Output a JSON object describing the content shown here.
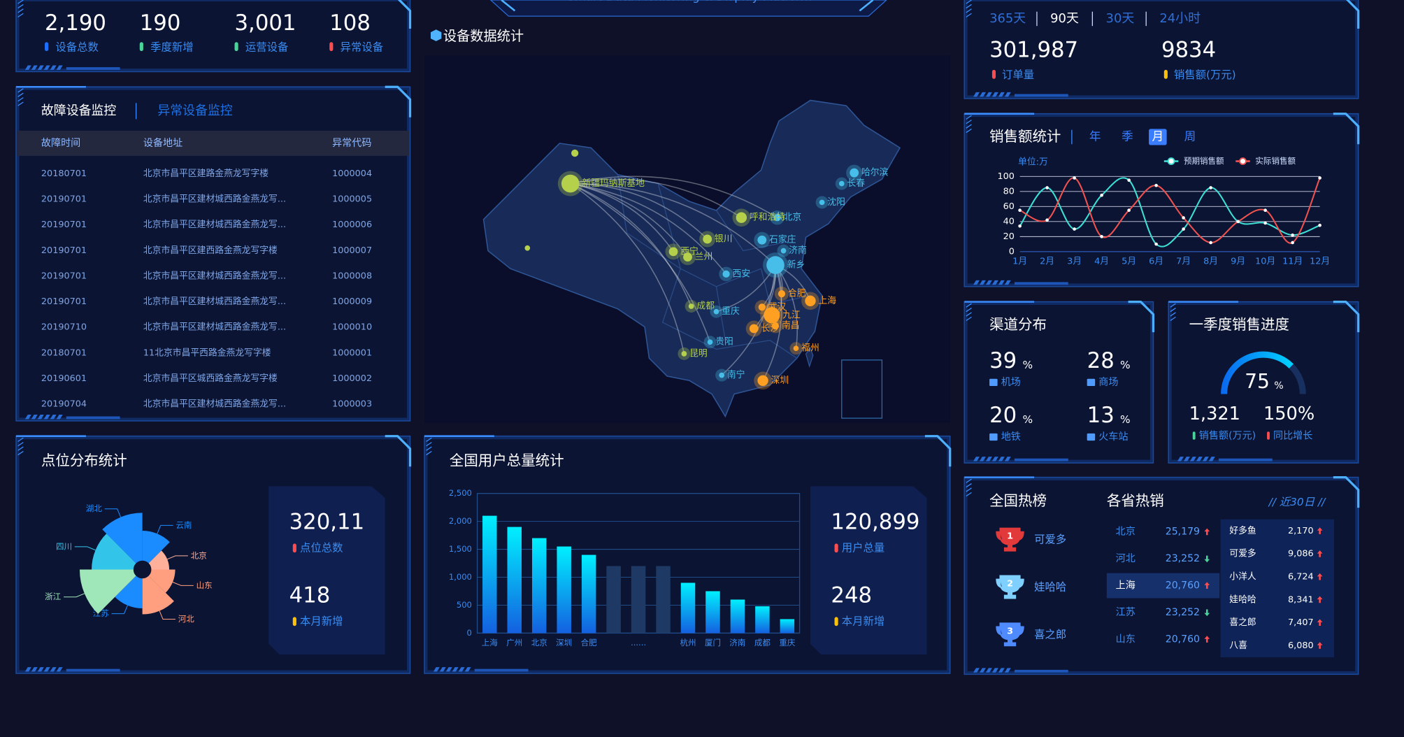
{
  "header": {
    "subtitle": "Smart Data Monitoring & Display Platform"
  },
  "kpis": [
    {
      "value": "2,190",
      "label": "设备总数"
    },
    {
      "value": "190",
      "label": "季度新增"
    },
    {
      "value": "3,001",
      "label": "运营设备"
    },
    {
      "value": "108",
      "label": "异常设备"
    }
  ],
  "fault": {
    "tabs": [
      "故障设备监控",
      "异常设备监控"
    ],
    "columns": [
      "故障时间",
      "设备地址",
      "异常代码"
    ],
    "rows": [
      [
        "20180701",
        "北京市昌平区建路金燕龙写字楼",
        "1000004"
      ],
      [
        "20190701",
        "北京市昌平区建材城西路金燕龙写...",
        "1000005"
      ],
      [
        "20190701",
        "北京市昌平区建材城西路金燕龙写...",
        "1000006"
      ],
      [
        "20190701",
        "北京市昌平区建西路金燕龙写字楼",
        "1000007"
      ],
      [
        "20190701",
        "北京市昌平区建材城西路金燕龙写...",
        "1000008"
      ],
      [
        "20190701",
        "北京市昌平区建材城西路金燕龙写...",
        "1000009"
      ],
      [
        "20190710",
        "北京市昌平区建材城西路金燕龙写...",
        "1000010"
      ],
      [
        "20180701",
        "11北京市昌平西路金燕龙写字楼",
        "1000001"
      ],
      [
        "20190601",
        "北京市昌平区城西路金燕龙写字楼",
        "1000002"
      ],
      [
        "20190704",
        "北京市昌平区建材城西路金燕龙写...",
        "1000003"
      ]
    ]
  },
  "map": {
    "title": "设备数据统计",
    "cities": [
      {
        "name": "新疆玛纳斯基地",
        "color": "#b5d14c"
      },
      {
        "name": "哈尔滨",
        "color": "#46bee9"
      },
      {
        "name": "长春",
        "color": "#46bee9"
      },
      {
        "name": "沈阳",
        "color": "#46bee9"
      },
      {
        "name": "北京",
        "color": "#46bee9"
      },
      {
        "name": "呼和浩特",
        "color": "#b5d14c"
      },
      {
        "name": "银川",
        "color": "#b5d14c"
      },
      {
        "name": "石家庄",
        "color": "#46bee9"
      },
      {
        "name": "济南",
        "color": "#46bee9"
      },
      {
        "name": "西宁",
        "color": "#b5d14c"
      },
      {
        "name": "兰州",
        "color": "#b5d14c"
      },
      {
        "name": "新乡",
        "color": "#46bee9"
      },
      {
        "name": "西安",
        "color": "#46bee9"
      },
      {
        "name": "成都",
        "color": "#b5d14c"
      },
      {
        "name": "重庆",
        "color": "#46bee9"
      },
      {
        "name": "合肥",
        "color": "#ffa022"
      },
      {
        "name": "上海",
        "color": "#ffa022"
      },
      {
        "name": "武汉",
        "color": "#ffa022"
      },
      {
        "name": "九江",
        "color": "#ffa022"
      },
      {
        "name": "南昌",
        "color": "#ffa022"
      },
      {
        "name": "长沙",
        "color": "#ffa022"
      },
      {
        "name": "贵阳",
        "color": "#46bee9"
      },
      {
        "name": "昆明",
        "color": "#b5d14c"
      },
      {
        "name": "福州",
        "color": "#ffa022"
      },
      {
        "name": "南宁",
        "color": "#46bee9"
      },
      {
        "name": "深圳",
        "color": "#ffa022"
      }
    ]
  },
  "orders": {
    "tabs": [
      "365天",
      "90天",
      "30天",
      "24小时"
    ],
    "stats": [
      {
        "value": "301,987",
        "label": "订单量"
      },
      {
        "value": "9834",
        "label": "销售额(万元)"
      }
    ]
  },
  "sales_tabs": [
    "年",
    "季",
    "月",
    "周"
  ],
  "channel": {
    "title": "渠道分布",
    "unit": "%",
    "items": [
      {
        "value": 39,
        "label": "机场"
      },
      {
        "value": 28,
        "label": "商场"
      },
      {
        "value": 20,
        "label": "地铁"
      },
      {
        "value": 13,
        "label": "火车站"
      }
    ]
  },
  "progress": {
    "title": "一季度销售进度",
    "stats": [
      {
        "value": "1,321",
        "label": "销售额(万元)"
      },
      {
        "value": "150%",
        "label": "同比增长"
      }
    ]
  },
  "points": {
    "stats": [
      {
        "value": "320,11",
        "label": "点位总数"
      },
      {
        "value": "418",
        "label": "本月新增"
      }
    ]
  },
  "users": {
    "stats": [
      {
        "value": "120,899",
        "label": "用户总量"
      },
      {
        "value": "248",
        "label": "本月新增"
      }
    ]
  },
  "hot": {
    "title": "全国热榜",
    "ranks": [
      {
        "rank": "1",
        "name": "可爱多"
      },
      {
        "rank": "2",
        "name": "娃哈哈"
      },
      {
        "rank": "3",
        "name": "喜之郎"
      }
    ],
    "province_title": "各省热销",
    "period": "// 近30日 //",
    "provinces": [
      {
        "name": "北京",
        "value": "25,179",
        "trend": "up"
      },
      {
        "name": "河北",
        "value": "23,252",
        "trend": "down"
      },
      {
        "name": "上海",
        "value": "20,760",
        "trend": "up"
      },
      {
        "name": "江苏",
        "value": "23,252",
        "trend": "down"
      },
      {
        "name": "山东",
        "value": "20,760",
        "trend": "up"
      }
    ],
    "brands": [
      {
        "name": "好多鱼",
        "value": "2,170",
        "trend": "up"
      },
      {
        "name": "可爱多",
        "value": "9,086",
        "trend": "up"
      },
      {
        "name": "小洋人",
        "value": "6,724",
        "trend": "up"
      },
      {
        "name": "娃哈哈",
        "value": "8,341",
        "trend": "up"
      },
      {
        "name": "喜之郎",
        "value": "7,407",
        "trend": "up"
      },
      {
        "name": "八喜",
        "value": "6,080",
        "trend": "up"
      }
    ]
  },
  "chart_data": [
    {
      "type": "line",
      "title": "销售额统计",
      "y_label": "单位:万",
      "categories": [
        "1月",
        "2月",
        "3月",
        "4月",
        "5月",
        "6月",
        "7月",
        "8月",
        "9月",
        "10月",
        "11月",
        "12月"
      ],
      "series": [
        {
          "name": "预期销售额",
          "color": "#3de0d5",
          "values": [
            34,
            85,
            30,
            75,
            95,
            10,
            30,
            85,
            40,
            38,
            22,
            35
          ]
        },
        {
          "name": "实际销售额",
          "color": "#f0524f",
          "values": [
            55,
            42,
            98,
            20,
            55,
            88,
            45,
            12,
            40,
            55,
            12,
            98
          ]
        }
      ],
      "ylim": [
        0,
        100
      ],
      "yticks": [
        0,
        20,
        40,
        60,
        80,
        100
      ],
      "grid": true
    },
    {
      "type": "rose",
      "title": "点位分布统计",
      "categories": [
        "云南",
        "北京",
        "山东",
        "河北",
        "江苏",
        "浙江",
        "四川",
        "湖北"
      ],
      "values": [
        25,
        15,
        20,
        30,
        25,
        45,
        35,
        40
      ],
      "colors": [
        "#1a8cff",
        "#ffb09a",
        "#ff9f7f",
        "#ff9f7f",
        "#1a8cff",
        "#9fe6b8",
        "#32c5e9",
        "#1a8cff"
      ]
    },
    {
      "type": "bar",
      "title": "全国用户总量统计",
      "categories": [
        "上海",
        "广州",
        "北京",
        "深圳",
        "合肥",
        null,
        "......",
        null,
        "杭州",
        "厦门",
        "济南",
        "成都",
        "重庆"
      ],
      "values": [
        2100,
        1900,
        1700,
        1550,
        1400,
        1200,
        1200,
        1200,
        900,
        750,
        600,
        480,
        250
      ],
      "colors": [
        "#00f0ff",
        "#00f0ff",
        "#00f0ff",
        "#00f0ff",
        "#00f0ff",
        "#1e3a64",
        "#1e3a64",
        "#1e3a64",
        "#00f0ff",
        "#00f0ff",
        "#00f0ff",
        "#00f0ff",
        "#00f0ff"
      ],
      "ylim": [
        0,
        2500
      ],
      "yticks": [
        0,
        500,
        {
          "value": 1000,
          "label": "1,000"
        },
        {
          "value": 1500,
          "label": "1,500"
        },
        {
          "value": 2000,
          "label": "2,000"
        },
        {
          "value": 2500,
          "label": "2,500"
        }
      ],
      "grid": true
    },
    {
      "type": "gauge",
      "value": 75,
      "unit": "%",
      "ylim": [
        0,
        100
      ]
    }
  ]
}
